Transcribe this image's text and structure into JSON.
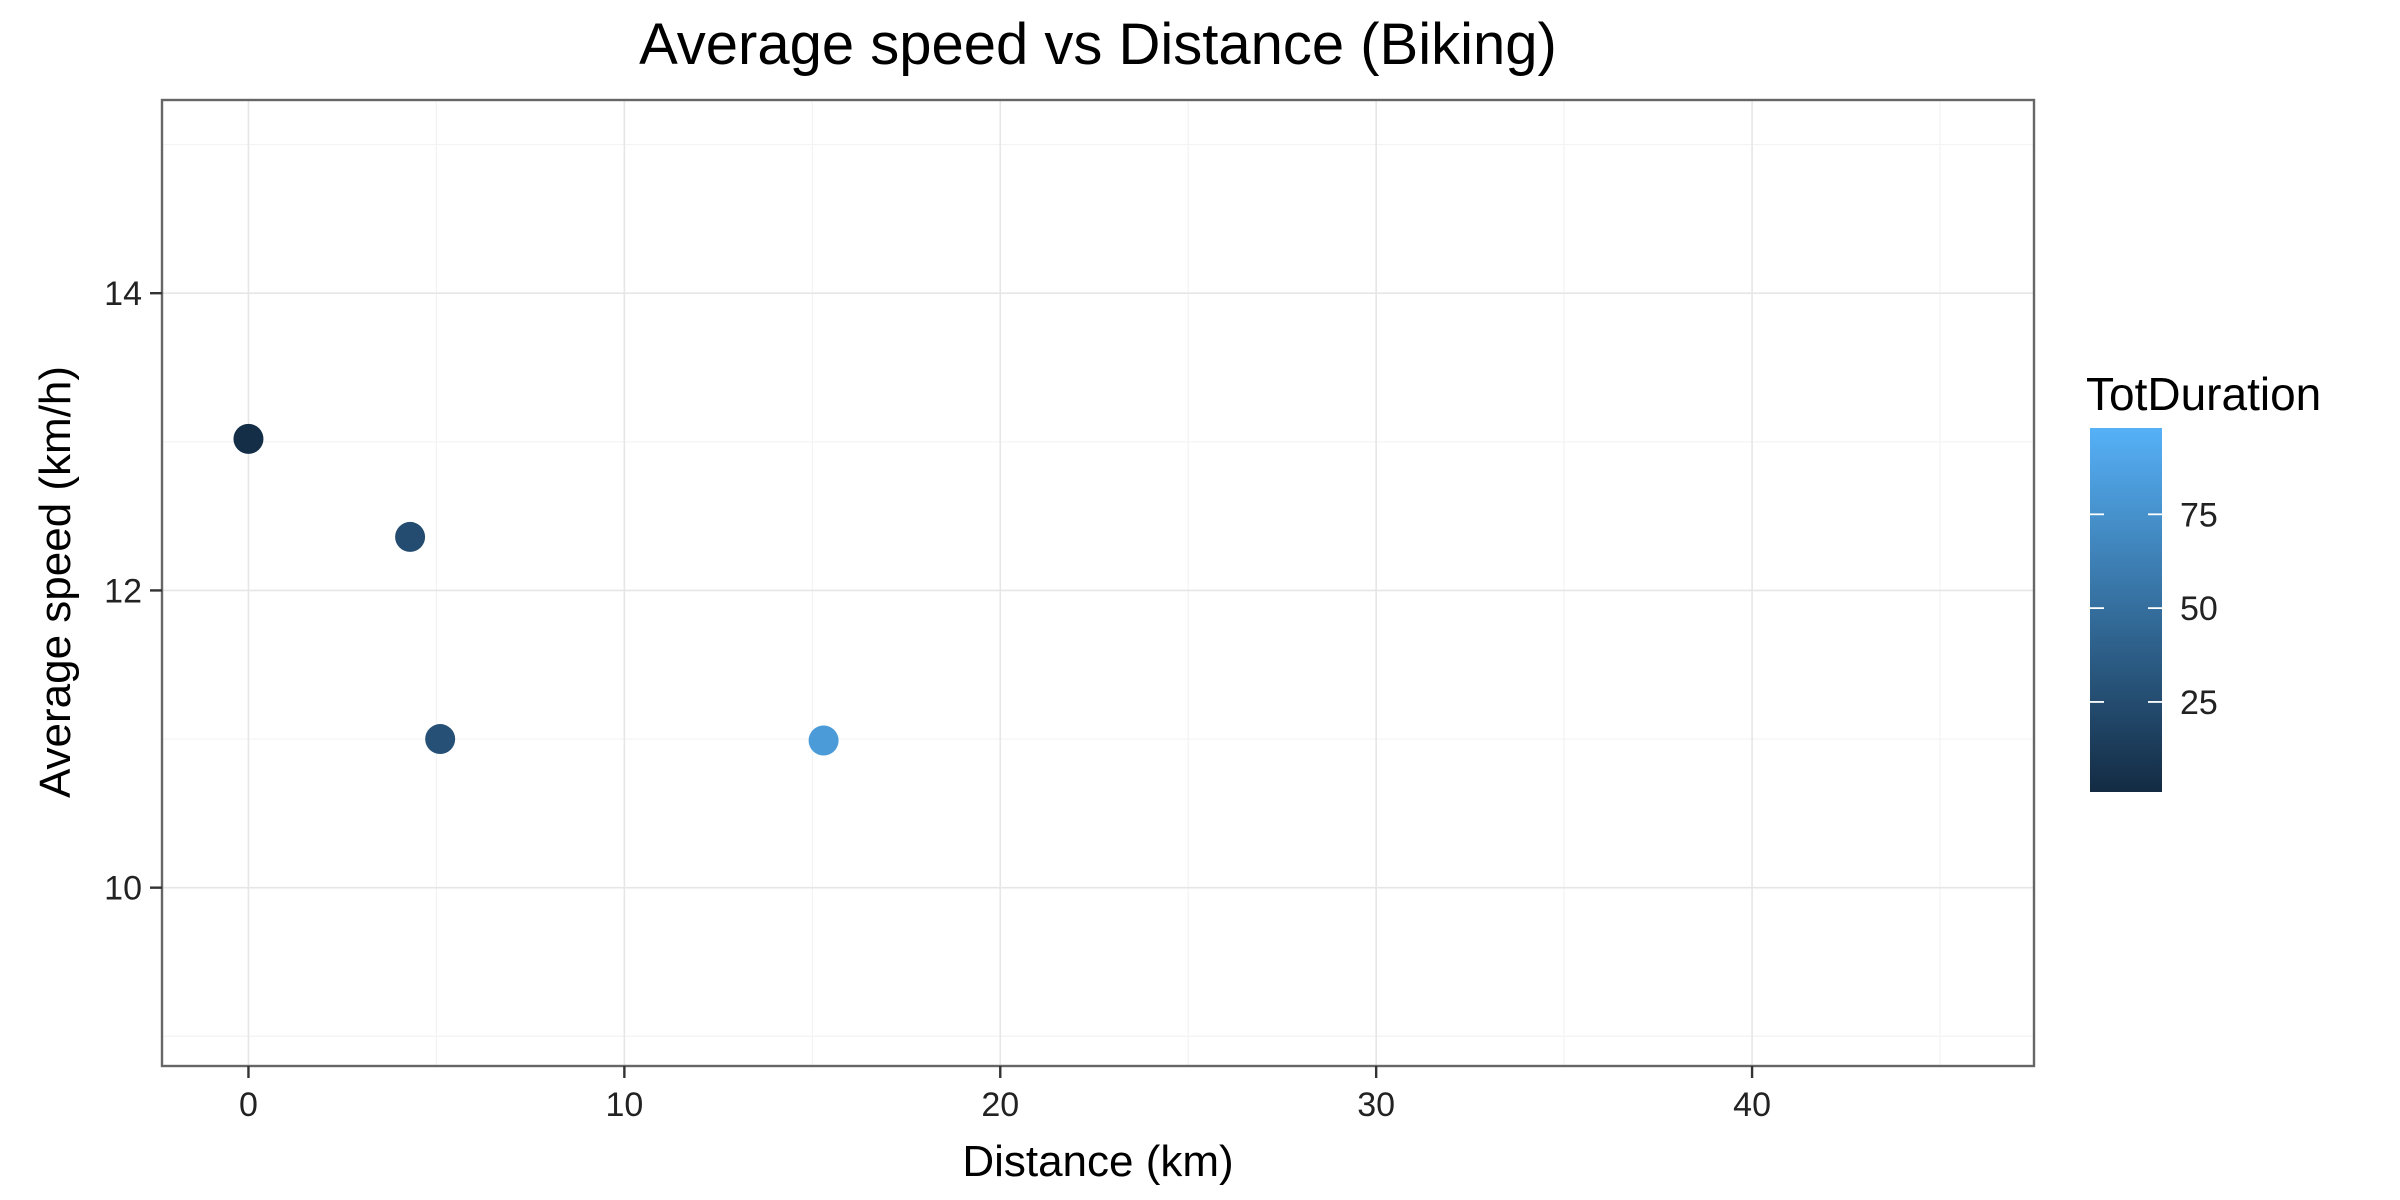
{
  "chart_data": {
    "type": "scatter",
    "title": "Average speed vs Distance (Biking)",
    "xlabel": "Distance (km)",
    "ylabel": "Average speed (km/h)",
    "xlim": [
      -2.3,
      47.5
    ],
    "ylim": [
      8.8,
      15.3
    ],
    "x_ticks": [
      0,
      10,
      20,
      30,
      40
    ],
    "y_ticks": [
      10,
      12,
      14
    ],
    "grid": true,
    "color_variable": "TotDuration",
    "legend": {
      "title": "TotDuration",
      "placement": "right",
      "type": "colorbar",
      "range": [
        1,
        98
      ],
      "ticks": [
        25,
        50,
        75
      ],
      "low_color": "#132B43",
      "high_color": "#56B1F7"
    },
    "points": [
      {
        "x": 0.0,
        "y": 13.02,
        "color_value": 3
      },
      {
        "x": 4.3,
        "y": 12.36,
        "color_value": 25
      },
      {
        "x": 5.1,
        "y": 11.0,
        "color_value": 28
      },
      {
        "x": 15.3,
        "y": 10.99,
        "color_value": 82
      }
    ]
  }
}
